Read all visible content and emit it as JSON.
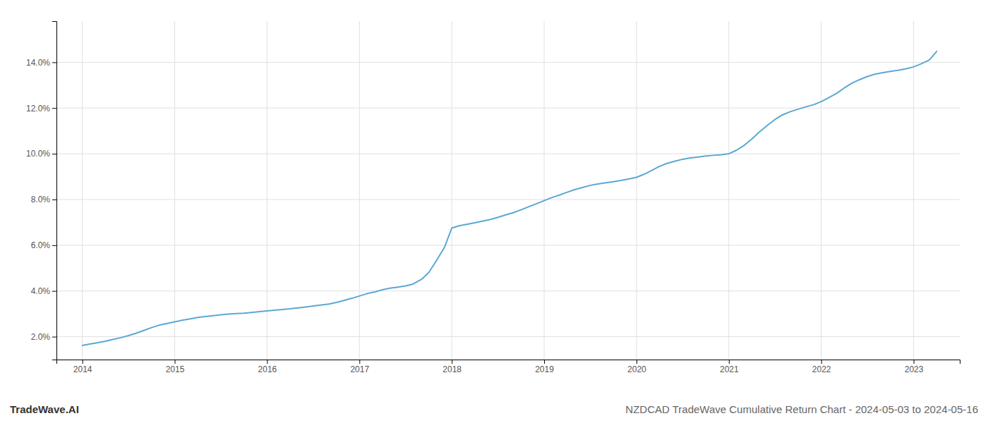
{
  "chart_data": {
    "type": "line",
    "title": "NZDCAD TradeWave Cumulative Return Chart - 2024-05-03 to 2024-05-16",
    "annotations": [
      "TradeWave.AI"
    ],
    "color": "#5ba8d4",
    "grid": true,
    "x": [
      2014.0,
      2014.08,
      2014.17,
      2014.25,
      2014.33,
      2014.42,
      2014.5,
      2014.58,
      2014.67,
      2014.75,
      2014.83,
      2014.92,
      2015.0,
      2015.08,
      2015.17,
      2015.25,
      2015.33,
      2015.42,
      2015.5,
      2015.58,
      2015.67,
      2015.75,
      2015.83,
      2015.92,
      2016.0,
      2016.08,
      2016.17,
      2016.25,
      2016.33,
      2016.42,
      2016.5,
      2016.58,
      2016.67,
      2016.75,
      2016.83,
      2016.92,
      2017.0,
      2017.08,
      2017.17,
      2017.25,
      2017.33,
      2017.42,
      2017.5,
      2017.58,
      2017.67,
      2017.75,
      2017.83,
      2017.92,
      2018.0,
      2018.08,
      2018.17,
      2018.25,
      2018.33,
      2018.42,
      2018.5,
      2018.58,
      2018.67,
      2018.75,
      2018.83,
      2018.92,
      2019.0,
      2019.08,
      2019.17,
      2019.25,
      2019.33,
      2019.42,
      2019.5,
      2019.58,
      2019.67,
      2019.75,
      2019.83,
      2019.92,
      2020.0,
      2020.08,
      2020.17,
      2020.25,
      2020.33,
      2020.42,
      2020.5,
      2020.58,
      2020.67,
      2020.75,
      2020.83,
      2020.92,
      2021.0,
      2021.08,
      2021.17,
      2021.25,
      2021.33,
      2021.42,
      2021.5,
      2021.58,
      2021.67,
      2021.75,
      2021.83,
      2021.92,
      2022.0,
      2022.08,
      2022.17,
      2022.25,
      2022.33,
      2022.42,
      2022.5,
      2022.58,
      2022.67,
      2022.75,
      2022.83,
      2022.92,
      2023.0,
      2023.08,
      2023.17,
      2023.25
    ],
    "values": [
      1.62,
      1.68,
      1.74,
      1.8,
      1.88,
      1.96,
      2.05,
      2.15,
      2.28,
      2.4,
      2.5,
      2.58,
      2.65,
      2.72,
      2.78,
      2.84,
      2.88,
      2.92,
      2.96,
      2.99,
      3.01,
      3.03,
      3.06,
      3.1,
      3.13,
      3.16,
      3.19,
      3.22,
      3.26,
      3.3,
      3.34,
      3.38,
      3.43,
      3.5,
      3.58,
      3.68,
      3.78,
      3.88,
      3.96,
      4.05,
      4.12,
      4.17,
      4.22,
      4.3,
      4.5,
      4.8,
      5.3,
      5.9,
      6.75,
      6.85,
      6.92,
      6.98,
      7.05,
      7.13,
      7.22,
      7.32,
      7.43,
      7.55,
      7.68,
      7.82,
      7.95,
      8.08,
      8.2,
      8.32,
      8.43,
      8.53,
      8.62,
      8.68,
      8.73,
      8.78,
      8.83,
      8.9,
      8.97,
      9.1,
      9.28,
      9.45,
      9.58,
      9.68,
      9.76,
      9.82,
      9.86,
      9.9,
      9.93,
      9.96,
      10.0,
      10.15,
      10.38,
      10.65,
      10.95,
      11.25,
      11.5,
      11.7,
      11.85,
      11.95,
      12.05,
      12.15,
      12.28,
      12.45,
      12.65,
      12.88,
      13.08,
      13.25,
      13.38,
      13.48,
      13.55,
      13.6,
      13.65,
      13.72,
      13.8,
      13.93,
      14.1,
      14.48
    ],
    "xlim": [
      2013.72,
      2023.5
    ],
    "ylim": [
      1.0,
      15.8
    ],
    "xticks": [
      2014,
      2015,
      2016,
      2017,
      2018,
      2019,
      2020,
      2021,
      2022,
      2023
    ],
    "yticks": [
      {
        "value": 2.0,
        "label": "2.0%"
      },
      {
        "value": 4.0,
        "label": "4.0%"
      },
      {
        "value": 6.0,
        "label": "6.0%"
      },
      {
        "value": 8.0,
        "label": "8.0%"
      },
      {
        "value": 10.0,
        "label": "10.0%"
      },
      {
        "value": 12.0,
        "label": "12.0%"
      },
      {
        "value": 14.0,
        "label": "14.0%"
      }
    ]
  }
}
